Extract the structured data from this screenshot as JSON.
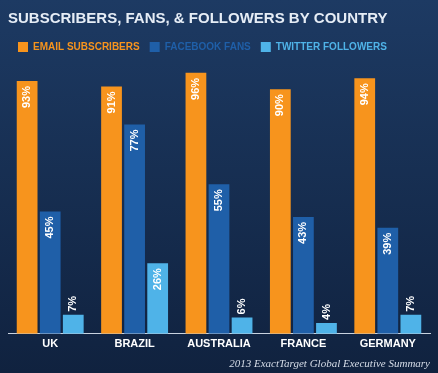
{
  "chart_data": {
    "type": "bar",
    "title": "SUBSCRIBERS, FANS, & FOLLOWERS BY COUNTRY",
    "categories": [
      "UK",
      "BRAZIL",
      "AUSTRALIA",
      "FRANCE",
      "GERMANY"
    ],
    "series": [
      {
        "name": "EMAIL SUBSCRIBERS",
        "color": "#f7941d",
        "values": [
          93,
          91,
          96,
          90,
          94
        ],
        "value_labels": [
          "93%",
          "91%",
          "96%",
          "90%",
          "94%"
        ]
      },
      {
        "name": "FACEBOOK FANS",
        "color": "#1f5fa8",
        "values": [
          45,
          77,
          55,
          43,
          39
        ],
        "value_labels": [
          "45%",
          "77%",
          "55%",
          "43%",
          "39%"
        ]
      },
      {
        "name": "TWITTER FOLLOWERS",
        "color": "#4fb3e8",
        "values": [
          7,
          26,
          6,
          4,
          7
        ],
        "value_labels": [
          "7%",
          "26%",
          "6%",
          "4%",
          "7%"
        ]
      }
    ],
    "ylim": [
      0,
      100
    ],
    "grid": false,
    "legend": "top-left",
    "data_labels": true,
    "tick_labels": "x",
    "annotations": [
      "2013 ExactTarget Global Executive Summary"
    ]
  }
}
